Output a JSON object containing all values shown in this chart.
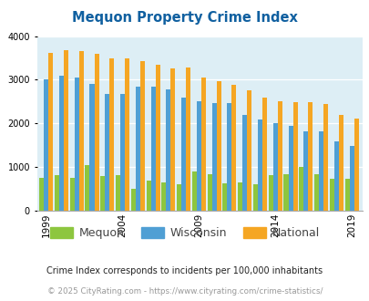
{
  "title": "Mequon Property Crime Index",
  "years": [
    1999,
    2000,
    2001,
    2002,
    2003,
    2004,
    2005,
    2006,
    2007,
    2008,
    2009,
    2010,
    2011,
    2012,
    2013,
    2014,
    2015,
    2016,
    2017,
    2018,
    2019
  ],
  "mequon": [
    750,
    820,
    750,
    1050,
    800,
    820,
    500,
    700,
    650,
    600,
    890,
    840,
    630,
    640,
    600,
    820,
    840,
    1010,
    840,
    730,
    740
  ],
  "wisconsin": [
    3000,
    3100,
    3050,
    2900,
    2670,
    2670,
    2850,
    2850,
    2780,
    2600,
    2500,
    2460,
    2460,
    2200,
    2080,
    2000,
    1950,
    1820,
    1810,
    1590,
    1490
  ],
  "national": [
    3620,
    3680,
    3660,
    3590,
    3500,
    3500,
    3430,
    3340,
    3270,
    3290,
    3050,
    2960,
    2880,
    2760,
    2600,
    2500,
    2480,
    2480,
    2450,
    2200,
    2110
  ],
  "colors": {
    "mequon": "#8dc63f",
    "wisconsin": "#4f9fd4",
    "national": "#f5a623"
  },
  "bg_color": "#ddeef5",
  "ylim": [
    0,
    4000
  ],
  "yticks": [
    0,
    1000,
    2000,
    3000,
    4000
  ],
  "xlabel_years": [
    1999,
    2004,
    2009,
    2014,
    2019
  ],
  "footnote1": "Crime Index corresponds to incidents per 100,000 inhabitants",
  "footnote2": "© 2025 CityRating.com - https://www.cityrating.com/crime-statistics/",
  "title_color": "#1060a0",
  "footnote1_color": "#222222",
  "footnote2_color": "#999999"
}
